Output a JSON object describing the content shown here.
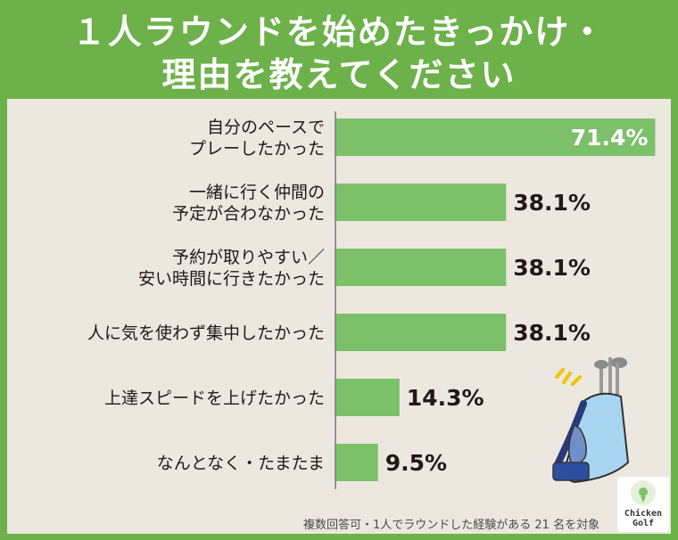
{
  "title": {
    "line1": "１人ラウンドを始めたきっかけ・",
    "line2": "理由を教えてください"
  },
  "chart_data": {
    "type": "bar",
    "orientation": "horizontal",
    "categories": [
      [
        "自分のペースで",
        "プレーしたかった"
      ],
      [
        "一緒に行く仲間の",
        "予定が合わなかった"
      ],
      [
        "予約が取りやすい／",
        "安い時間に行きたかった"
      ],
      [
        "人に気を使わず集中したかった"
      ],
      [
        "上達スピードを上げたかった"
      ],
      [
        "なんとなく・たまたま"
      ]
    ],
    "values": [
      71.4,
      38.1,
      38.1,
      38.1,
      14.3,
      9.5
    ],
    "value_labels": [
      "71.4%",
      "38.1%",
      "38.1%",
      "38.1%",
      "14.3%",
      "9.5%"
    ],
    "xlim": [
      0,
      100
    ],
    "colors": {
      "bar": "#7cc16a",
      "axis": "#777777",
      "value_text": "#231815",
      "value_text_inside": "#ffffff"
    }
  },
  "footnote": "複数回答可・1人でラウンドした経験がある 21 名を対象",
  "logo": {
    "line1": "Chicken",
    "line2": "Golf",
    "icon": "chicken-golf-logo-icon"
  },
  "illustration": {
    "icon": "golf-bag-icon"
  }
}
